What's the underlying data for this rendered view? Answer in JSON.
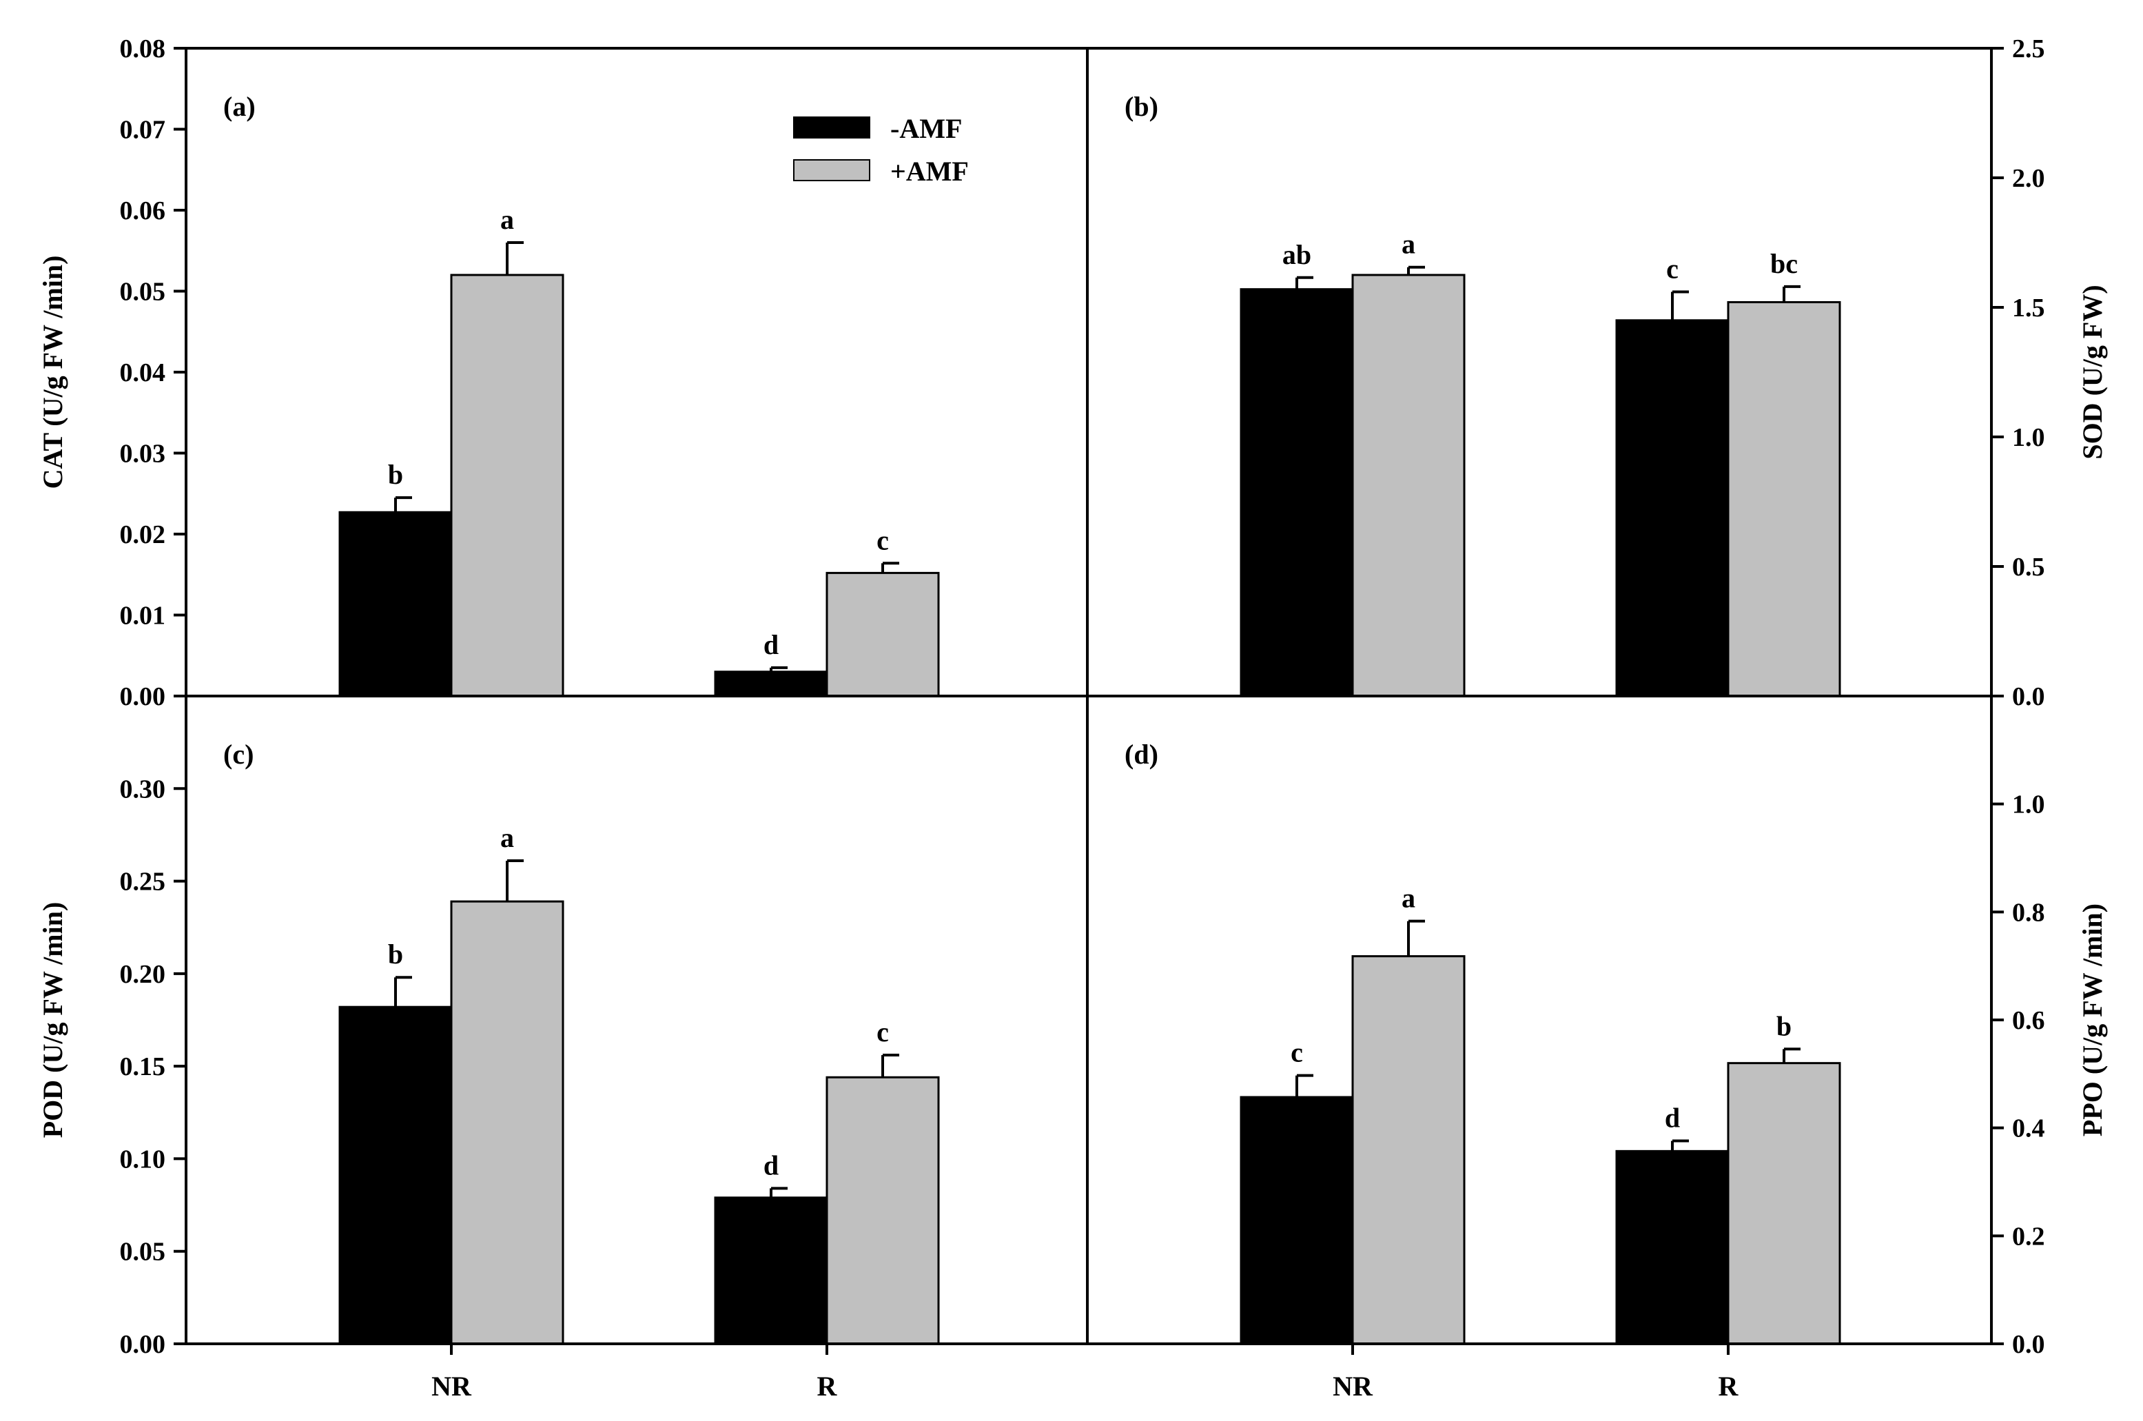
{
  "chart_data": [
    {
      "type": "bar",
      "panel_label": "(a)",
      "categories": [
        "NR",
        "R"
      ],
      "ylabel": "CAT (U/g FW /min)",
      "ylim": [
        0,
        0.08
      ],
      "yticks": [
        "0.00",
        "0.01",
        "0.02",
        "0.03",
        "0.04",
        "0.05",
        "0.06",
        "0.07",
        "0.08"
      ],
      "axis_side": "left",
      "series": [
        {
          "name": "-AMF",
          "values": [
            0.0227,
            0.003
          ],
          "errors": [
            0.0018,
            0.0005
          ],
          "letters": [
            "b",
            "d"
          ]
        },
        {
          "name": "+AMF",
          "values": [
            0.052,
            0.0152
          ],
          "errors": [
            0.004,
            0.0012
          ],
          "letters": [
            "a",
            "c"
          ]
        }
      ]
    },
    {
      "type": "bar",
      "panel_label": "(b)",
      "categories": [
        "NR",
        "R"
      ],
      "ylabel": "SOD (U/g FW)",
      "ylim": [
        0,
        2.5
      ],
      "yticks": [
        "0.0",
        "0.5",
        "1.0",
        "1.5",
        "2.0",
        "2.5"
      ],
      "axis_side": "right",
      "series": [
        {
          "name": "-AMF",
          "values": [
            1.57,
            1.45
          ],
          "errors": [
            0.045,
            0.11
          ],
          "letters": [
            "ab",
            "c"
          ]
        },
        {
          "name": "+AMF",
          "values": [
            1.625,
            1.52
          ],
          "errors": [
            0.03,
            0.06
          ],
          "letters": [
            "a",
            "bc"
          ]
        }
      ]
    },
    {
      "type": "bar",
      "panel_label": "(c)",
      "categories": [
        "NR",
        "R"
      ],
      "ylabel": "POD (U/g FW /min)",
      "ylim": [
        0,
        0.35
      ],
      "yticks": [
        "0.00",
        "0.05",
        "0.10",
        "0.15",
        "0.20",
        "0.25",
        "0.30"
      ],
      "axis_side": "left",
      "series": [
        {
          "name": "-AMF",
          "values": [
            0.182,
            0.079
          ],
          "errors": [
            0.016,
            0.005
          ],
          "letters": [
            "b",
            "d"
          ]
        },
        {
          "name": "+AMF",
          "values": [
            0.239,
            0.144
          ],
          "errors": [
            0.022,
            0.012
          ],
          "letters": [
            "a",
            "c"
          ]
        }
      ]
    },
    {
      "type": "bar",
      "panel_label": "(d)",
      "categories": [
        "NR",
        "R"
      ],
      "ylabel": "PPO (U/g FW /min)",
      "ylim": [
        0,
        1.2
      ],
      "yticks": [
        "0.0",
        "0.2",
        "0.4",
        "0.6",
        "0.8",
        "1.0"
      ],
      "axis_side": "right",
      "series": [
        {
          "name": "-AMF",
          "values": [
            0.457,
            0.357
          ],
          "errors": [
            0.04,
            0.019
          ],
          "letters": [
            "c",
            "d"
          ]
        },
        {
          "name": "+AMF",
          "values": [
            0.718,
            0.52
          ],
          "errors": [
            0.065,
            0.026
          ],
          "letters": [
            "a",
            "b"
          ]
        }
      ]
    }
  ],
  "legend": {
    "entries": [
      {
        "label": "-AMF",
        "color": "#000000"
      },
      {
        "label": "+AMF",
        "color": "#c0c0c0"
      }
    ]
  },
  "colors": {
    "minus_amf": "#000000",
    "plus_amf": "#c0c0c0",
    "axes": "#000000"
  }
}
